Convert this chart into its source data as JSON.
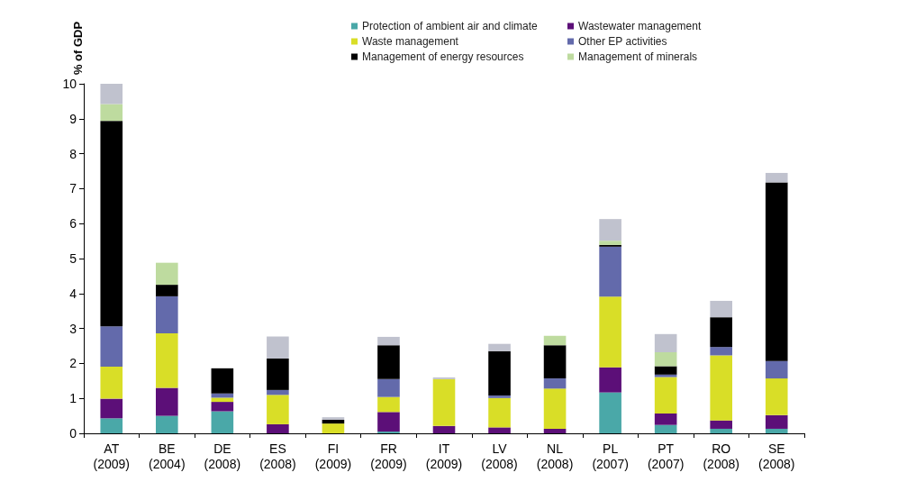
{
  "chart_data": {
    "type": "bar",
    "stacked": true,
    "ylabel": "% of GDP",
    "categories": [
      "AT\n(2009)",
      "BE\n(2004)",
      "DE\n(2008)",
      "ES\n(2008)",
      "FI\n(2009)",
      "FR\n(2009)",
      "IT\n(2009)",
      "LV\n(2008)",
      "NL\n(2008)",
      "PL\n(2007)",
      "PT\n(2007)",
      "RO\n(2008)",
      "SE\n(2008)"
    ],
    "series": [
      {
        "name": "Protection of ambient air and climate",
        "color": "#4aa8a8",
        "values": [
          0.43,
          0.5,
          0.63,
          0,
          0,
          0.05,
          0,
          0,
          0,
          1.17,
          0.24,
          0.13,
          0.13
        ]
      },
      {
        "name": "Wastewater management",
        "color": "#5c0f78",
        "values": [
          0.56,
          0.8,
          0.27,
          0.26,
          0,
          0.56,
          0.21,
          0.17,
          0.13,
          0.72,
          0.33,
          0.24,
          0.39
        ]
      },
      {
        "name": "Waste management",
        "color": "#d9de27",
        "values": [
          0.92,
          1.56,
          0.12,
          0.84,
          0.28,
          0.43,
          1.34,
          0.84,
          1.15,
          2.02,
          1.04,
          1.86,
          1.05
        ]
      },
      {
        "name": "Other EP activities",
        "color": "#636aab",
        "values": [
          1.15,
          1.06,
          0.12,
          0.14,
          0,
          0.51,
          0,
          0.07,
          0.29,
          1.43,
          0.07,
          0.24,
          0.5
        ]
      },
      {
        "name": "Management of energy resources",
        "color": "#000000",
        "values": [
          5.88,
          0.33,
          0.72,
          0.9,
          0.11,
          0.97,
          0,
          1.27,
          0.95,
          0.05,
          0.24,
          0.85,
          5.11
        ]
      },
      {
        "name": "Management of minerals",
        "color": "#bedb9f",
        "values": [
          0.48,
          0.63,
          0,
          0,
          0,
          0,
          0,
          0,
          0.27,
          0.12,
          0.4,
          0,
          0
        ]
      },
      {
        "color": "#c0c2ce",
        "values": [
          0.58,
          0,
          0,
          0.63,
          0.07,
          0.24,
          0.05,
          0.21,
          0,
          0.62,
          0.52,
          0.47,
          0.27
        ]
      }
    ],
    "ylim": [
      0,
      10
    ],
    "yticks": [
      0,
      1,
      2,
      3,
      4,
      5,
      6,
      7,
      8,
      9,
      10
    ],
    "grid": false,
    "legend": "top right"
  }
}
